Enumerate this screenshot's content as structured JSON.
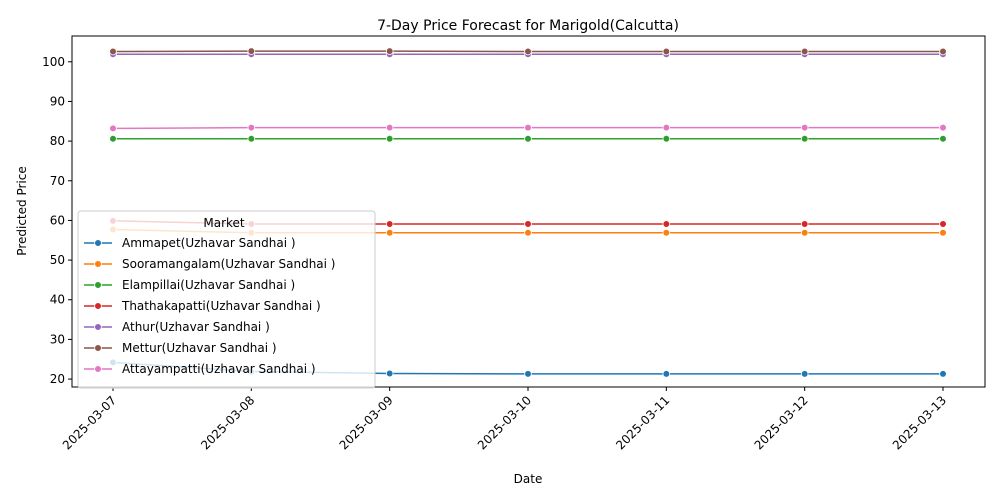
{
  "chart_data": {
    "type": "line",
    "title": "7-Day Price Forecast for Marigold(Calcutta)",
    "xlabel": "Date",
    "ylabel": "Predicted Price",
    "x": [
      "2025-03-07",
      "2025-03-08",
      "2025-03-09",
      "2025-03-10",
      "2025-03-11",
      "2025-03-12",
      "2025-03-13"
    ],
    "yticks": [
      20,
      30,
      40,
      50,
      60,
      70,
      80,
      90,
      100
    ],
    "ylim": [
      18.0,
      106.5
    ],
    "grid": false,
    "legend": {
      "title": "Market",
      "position": "center-left"
    },
    "series": [
      {
        "name": "Ammapet(Uzhavar Sandhai )",
        "color": "#1f77b4",
        "values": [
          24.2,
          21.9,
          21.4,
          21.3,
          21.3,
          21.3,
          21.3
        ]
      },
      {
        "name": "Sooramangalam(Uzhavar Sandhai )",
        "color": "#ff7f0e",
        "values": [
          57.7,
          56.9,
          56.9,
          56.9,
          56.9,
          56.9,
          56.9
        ]
      },
      {
        "name": "Elampillai(Uzhavar Sandhai )",
        "color": "#2ca02c",
        "values": [
          80.6,
          80.6,
          80.6,
          80.6,
          80.6,
          80.6,
          80.6
        ]
      },
      {
        "name": "Thathakapatti(Uzhavar Sandhai )",
        "color": "#d62728",
        "values": [
          59.9,
          59.1,
          59.1,
          59.1,
          59.1,
          59.1,
          59.1
        ]
      },
      {
        "name": "Athur(Uzhavar Sandhai )",
        "color": "#9467bd",
        "values": [
          101.9,
          101.9,
          101.9,
          101.9,
          101.9,
          101.9,
          101.9
        ]
      },
      {
        "name": "Mettur(Uzhavar Sandhai )",
        "color": "#8c564b",
        "values": [
          102.6,
          102.7,
          102.7,
          102.6,
          102.6,
          102.6,
          102.6
        ]
      },
      {
        "name": "Attayampatti(Uzhavar Sandhai )",
        "color": "#e377c2",
        "values": [
          83.2,
          83.4,
          83.4,
          83.4,
          83.4,
          83.4,
          83.4
        ]
      }
    ]
  }
}
